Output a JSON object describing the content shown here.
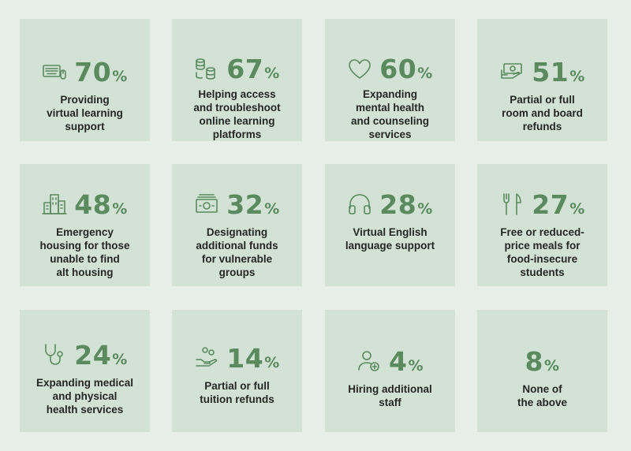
{
  "cards": [
    {
      "value": "70",
      "unit": "%",
      "label": "Providing\nvirtual learning\nsupport",
      "icon": "keyboard-mouse-icon"
    },
    {
      "value": "67",
      "unit": "%",
      "label": "Helping access\nand troubleshoot\nonline learning\nplatforms",
      "icon": "database-icon"
    },
    {
      "value": "60",
      "unit": "%",
      "label": "Expanding\nmental health\nand counseling\nservices",
      "icon": "heart-icon"
    },
    {
      "value": "51",
      "unit": "%",
      "label": "Partial or full\nroom and board\nrefunds",
      "icon": "money-hand-icon"
    },
    {
      "value": "48",
      "unit": "%",
      "label": "Emergency\nhousing for those\nunable to find\nalt housing",
      "icon": "buildings-icon"
    },
    {
      "value": "32",
      "unit": "%",
      "label": "Designating\nadditional funds\nfor vulnerable\ngroups",
      "icon": "cash-stack-icon"
    },
    {
      "value": "28",
      "unit": "%",
      "label": "Virtual English\nlanguage support",
      "icon": "headphones-icon"
    },
    {
      "value": "27",
      "unit": "%",
      "label": "Free or reduced-\nprice meals for\nfood-insecure\nstudents",
      "icon": "fork-knife-icon"
    },
    {
      "value": "24",
      "unit": "%",
      "label": "Expanding medical\nand physical\nhealth services",
      "icon": "stethoscope-icon"
    },
    {
      "value": "14",
      "unit": "%",
      "label": "Partial or full\ntuition refunds",
      "icon": "coins-hand-icon"
    },
    {
      "value": "4",
      "unit": "%",
      "label": "Hiring additional\nstaff",
      "icon": "add-user-icon"
    },
    {
      "value": "8",
      "unit": "%",
      "label": "None of\nthe above",
      "icon": ""
    }
  ],
  "colors": {
    "accent": "#5a8a5e",
    "card": "#d2e2d4",
    "background": "#e8efe9",
    "text": "#262626"
  }
}
